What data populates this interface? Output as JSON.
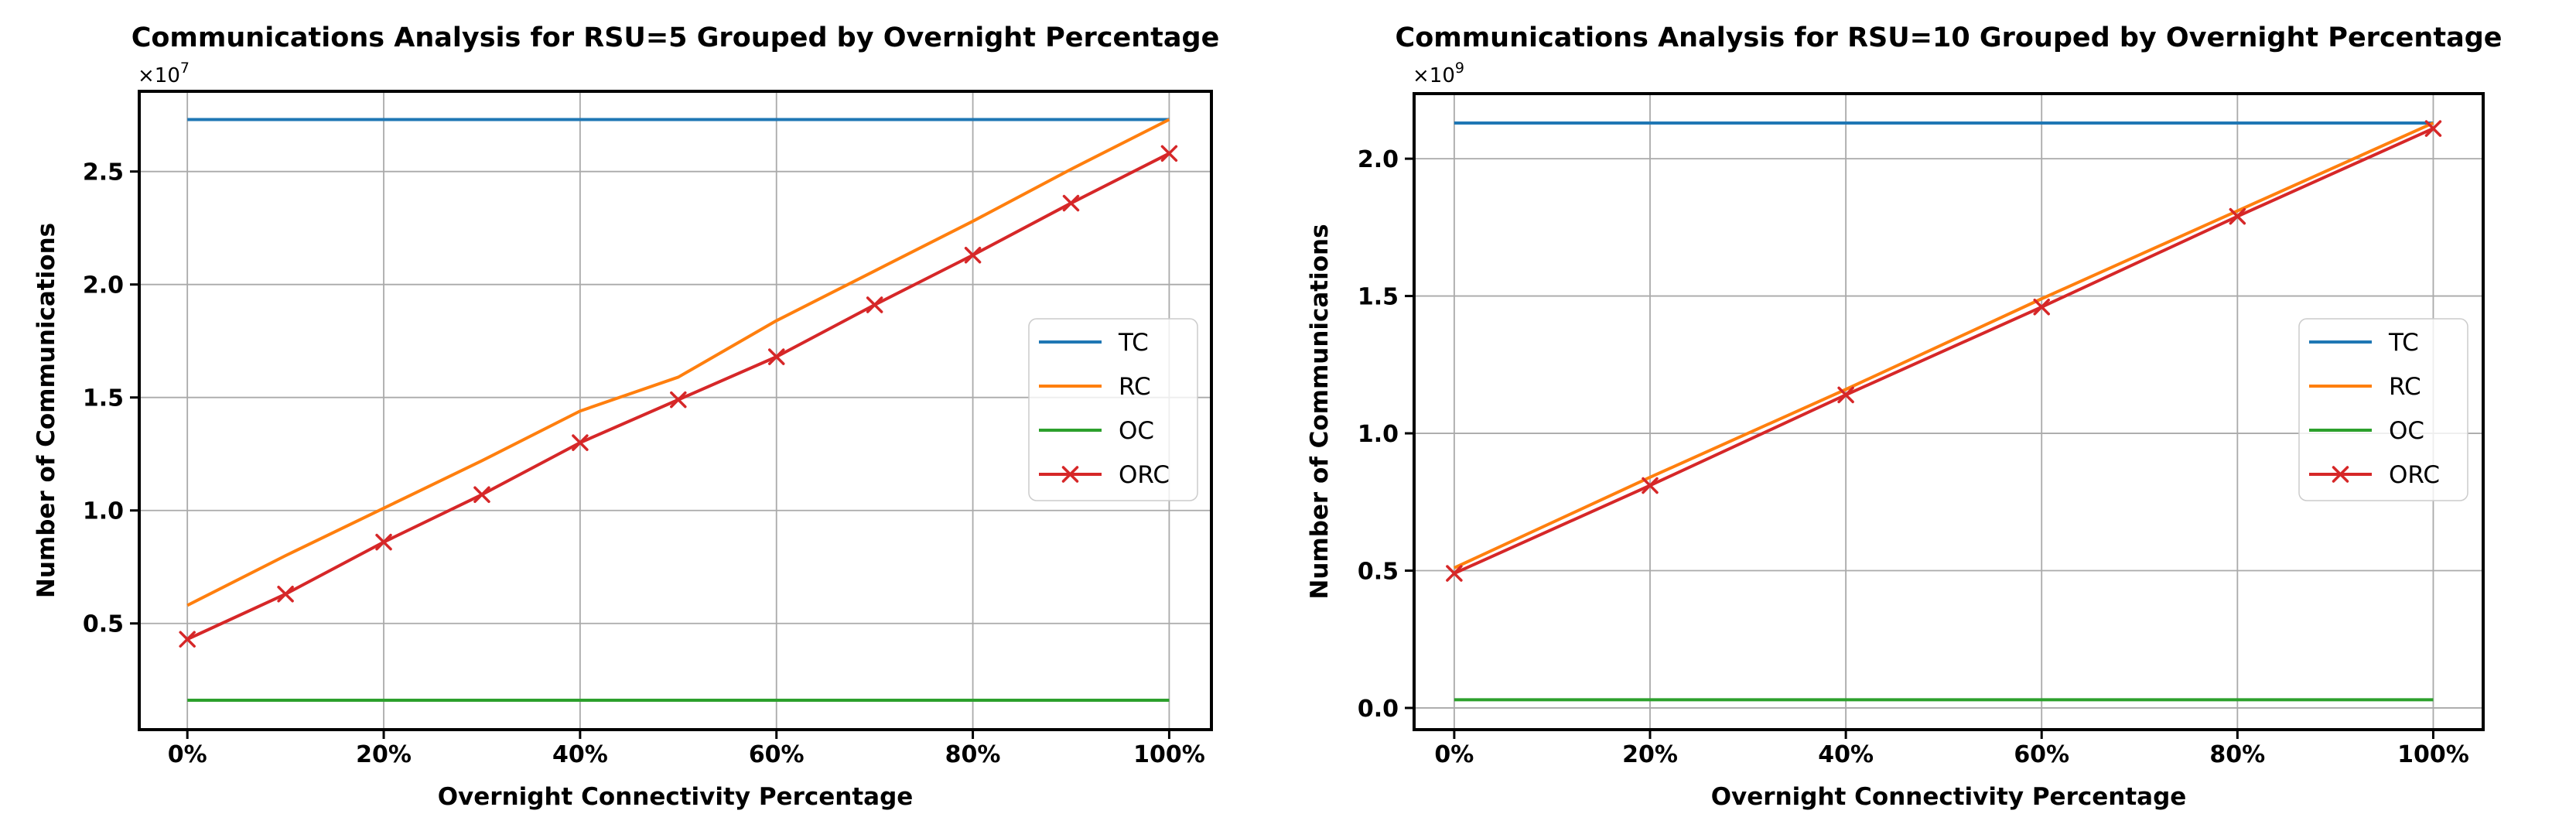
{
  "figure": {
    "background": "#ffffff",
    "grid_color": "#aaaaaa",
    "spine_color": "#000000",
    "legend_border_color": "#cccccc",
    "legend_background": "rgba(255,255,255,0.8)"
  },
  "chart_data": [
    {
      "type": "line",
      "title": "Communications Analysis for RSU=5 Grouped by Overnight Percentage",
      "xlabel": "Overnight Connectivity Percentage",
      "ylabel": "Number of Communications",
      "y_offset_base": "×10",
      "y_offset_exponent": "7",
      "y_unit": "1e7",
      "x": [
        0,
        10,
        20,
        30,
        40,
        50,
        60,
        70,
        80,
        90,
        100
      ],
      "x_ticks": [
        0,
        20,
        40,
        60,
        80,
        100
      ],
      "x_tick_labels": [
        "0%",
        "20%",
        "40%",
        "60%",
        "80%",
        "100%"
      ],
      "y_ticks": [
        0.5,
        1.0,
        1.5,
        2.0,
        2.5
      ],
      "y_tick_labels": [
        "0.5",
        "1.0",
        "1.5",
        "2.0",
        "2.5"
      ],
      "xlim": [
        -4.9,
        104.3
      ],
      "ylim": [
        0.03,
        2.855
      ],
      "grid": true,
      "legend_position": "center right",
      "legend_entries": [
        "TC",
        "RC",
        "OC",
        "ORC"
      ],
      "series": [
        {
          "name": "TC",
          "color": "#1f77b4",
          "marker": "none",
          "values": [
            2.73,
            2.73,
            2.73,
            2.73,
            2.73,
            2.73,
            2.73,
            2.73,
            2.73,
            2.73,
            2.73
          ]
        },
        {
          "name": "RC",
          "color": "#ff7f0e",
          "marker": "none",
          "values": [
            0.58,
            0.8,
            1.01,
            1.22,
            1.44,
            1.59,
            1.84,
            2.06,
            2.28,
            2.51,
            2.73
          ]
        },
        {
          "name": "OC",
          "color": "#2ca02c",
          "marker": "none",
          "values": [
            0.16,
            0.16,
            0.16,
            0.16,
            0.16,
            0.16,
            0.16,
            0.16,
            0.16,
            0.16,
            0.16
          ]
        },
        {
          "name": "ORC",
          "color": "#d62728",
          "marker": "x",
          "values": [
            0.43,
            0.63,
            0.86,
            1.07,
            1.3,
            1.49,
            1.68,
            1.91,
            2.13,
            2.36,
            2.58
          ]
        }
      ]
    },
    {
      "type": "line",
      "title": "Communications Analysis for RSU=10 Grouped by Overnight Percentage",
      "xlabel": "Overnight Connectivity Percentage",
      "ylabel": "Number of Communications",
      "y_offset_base": "×10",
      "y_offset_exponent": "9",
      "y_unit": "1e9",
      "x": [
        0,
        20,
        40,
        60,
        80,
        100
      ],
      "x_ticks": [
        0,
        20,
        40,
        60,
        80,
        100
      ],
      "x_tick_labels": [
        "0%",
        "20%",
        "40%",
        "60%",
        "80%",
        "100%"
      ],
      "y_ticks": [
        0.0,
        0.5,
        1.0,
        1.5,
        2.0
      ],
      "y_tick_labels": [
        "0.0",
        "0.5",
        "1.0",
        "1.5",
        "2.0"
      ],
      "xlim": [
        -4.1,
        105.1
      ],
      "ylim": [
        -0.079,
        2.237
      ],
      "grid": true,
      "legend_position": "center right",
      "legend_entries": [
        "TC",
        "RC",
        "OC",
        "ORC"
      ],
      "series": [
        {
          "name": "TC",
          "color": "#1f77b4",
          "marker": "none",
          "values": [
            2.13,
            2.13,
            2.13,
            2.13,
            2.13,
            2.13
          ]
        },
        {
          "name": "RC",
          "color": "#ff7f0e",
          "marker": "none",
          "values": [
            0.51,
            0.84,
            1.16,
            1.49,
            1.81,
            2.13
          ]
        },
        {
          "name": "OC",
          "color": "#2ca02c",
          "marker": "none",
          "values": [
            0.03,
            0.03,
            0.03,
            0.03,
            0.03,
            0.03
          ]
        },
        {
          "name": "ORC",
          "color": "#d62728",
          "marker": "x",
          "values": [
            0.49,
            0.81,
            1.14,
            1.46,
            1.79,
            2.11
          ]
        }
      ]
    }
  ]
}
